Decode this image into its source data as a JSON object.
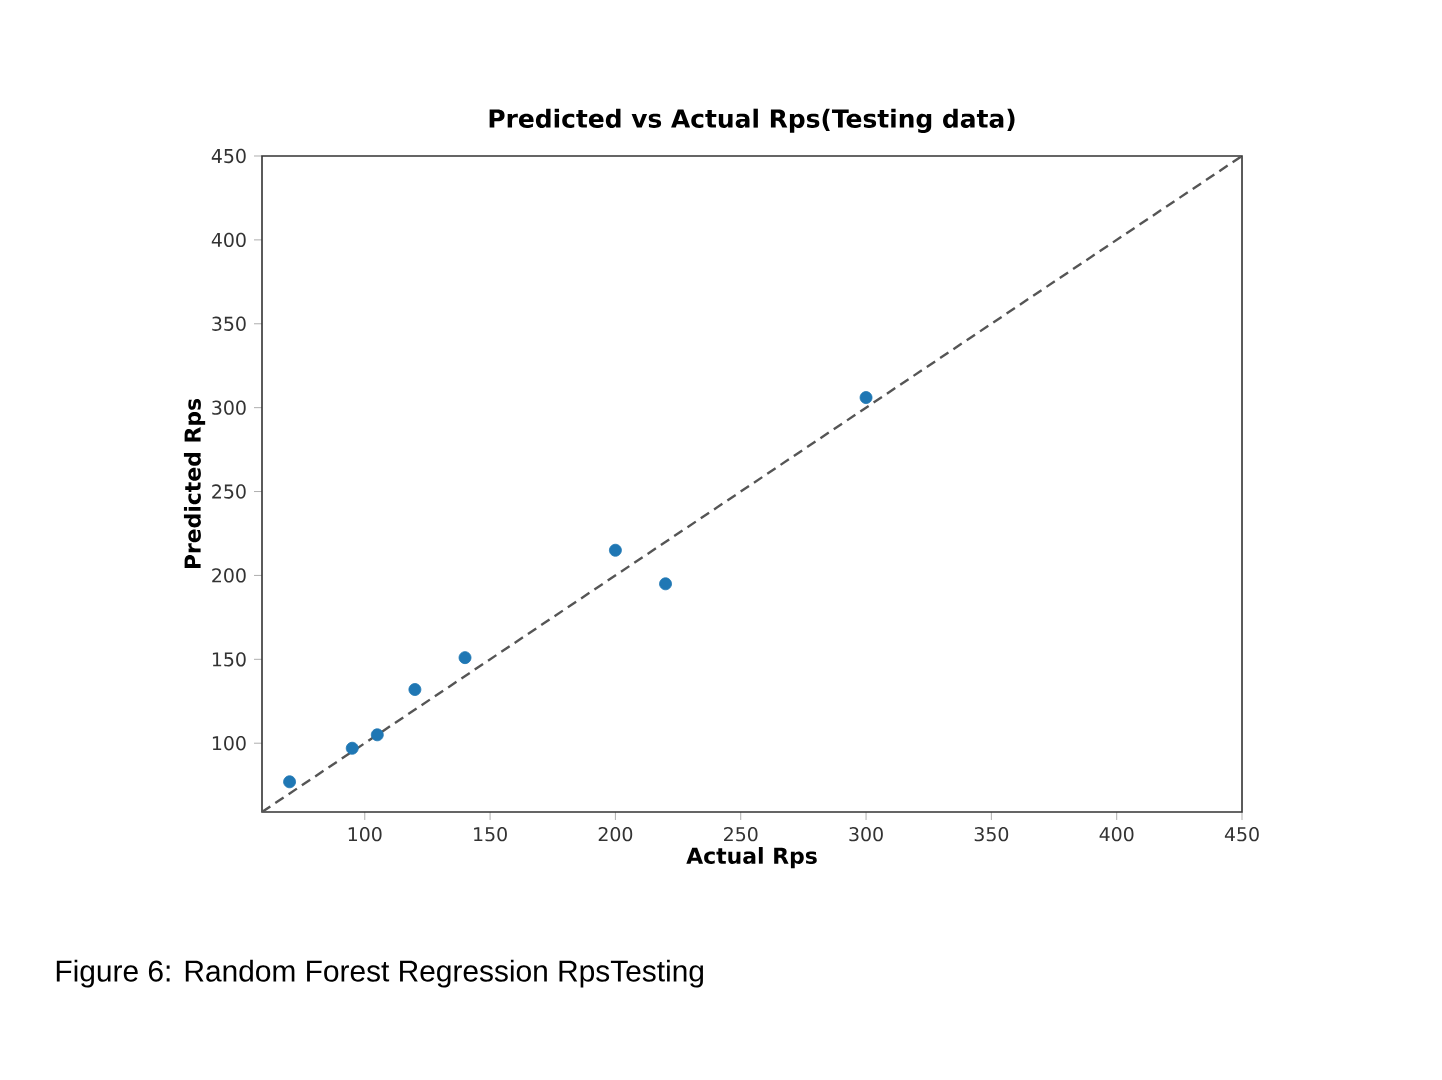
{
  "chart_data": {
    "type": "scatter",
    "title": "Predicted vs Actual Rps(Testing data)",
    "xlabel": "Actual Rps",
    "ylabel": "Predicted Rps",
    "series": [
      {
        "color": "#1f77b4",
        "marker": "circle",
        "x": [
          70,
          95,
          105,
          120,
          140,
          200,
          220,
          300
        ],
        "values": [
          77,
          97,
          105,
          132,
          151,
          215,
          195,
          306
        ]
      },
      {
        "type": "line",
        "color": "#555555",
        "line_style": "dashed",
        "marker": "none",
        "x": [
          59,
          450
        ],
        "values": [
          59,
          450
        ]
      }
    ],
    "xlim": [
      59,
      450
    ],
    "ylim": [
      59,
      450
    ],
    "xticks": [
      100,
      150,
      200,
      250,
      300,
      350,
      400,
      450
    ],
    "yticks": [
      100,
      150,
      200,
      250,
      300,
      350,
      400,
      450
    ],
    "annotations": [
      "Figure 6: Random Forest Regression RpsTesting"
    ]
  }
}
